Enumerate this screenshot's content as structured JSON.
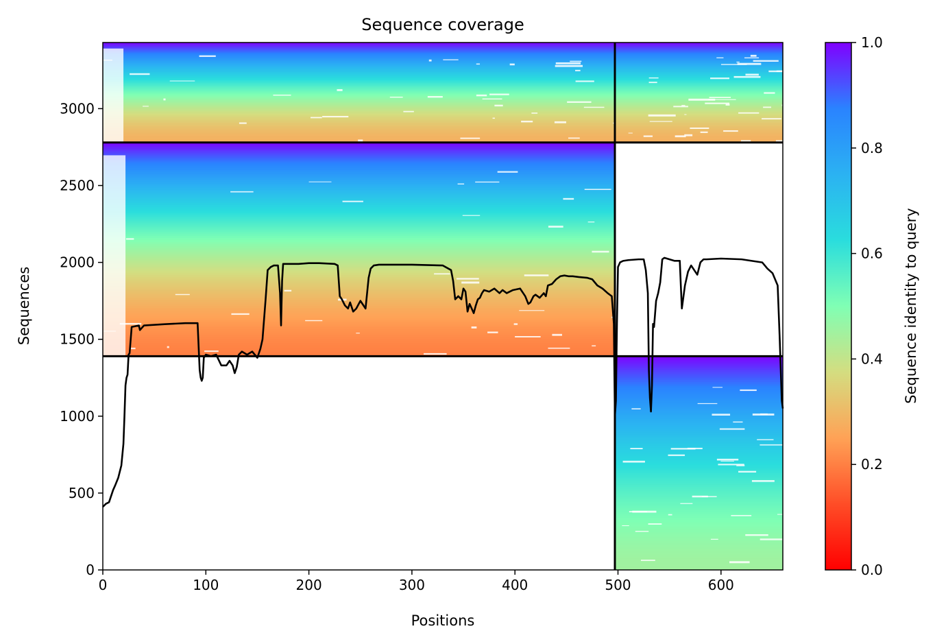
{
  "chart_data": {
    "type": "heatmap",
    "title": "Sequence coverage",
    "xlabel": "Positions",
    "ylabel": "Sequences",
    "xlim": [
      0,
      660
    ],
    "ylim": [
      0,
      3430
    ],
    "x_ticks": [
      0,
      100,
      200,
      300,
      400,
      500,
      600
    ],
    "y_ticks": [
      0,
      500,
      1000,
      1500,
      2000,
      2500,
      3000
    ],
    "colorbar": {
      "label": "Sequence identity to query",
      "colormap": "rainbow_r",
      "range": [
        0.0,
        1.0
      ],
      "ticks": [
        0.0,
        0.2,
        0.4,
        0.6,
        0.8,
        1.0
      ],
      "tick_labels": [
        "0.0",
        "0.2",
        "0.4",
        "0.6",
        "0.8",
        "1.0"
      ]
    },
    "blocks": [
      {
        "x": [
          0,
          497
        ],
        "y": [
          2780,
          3430
        ],
        "identity_bottom": 0.28,
        "identity_top": 1.0,
        "left_gap_end": 20
      },
      {
        "x": [
          497,
          660
        ],
        "y": [
          2780,
          3430
        ],
        "identity_bottom": 0.28,
        "identity_top": 1.0,
        "left_gap_end": 497
      },
      {
        "x": [
          0,
          497
        ],
        "y": [
          1390,
          2780
        ],
        "identity_bottom": 0.2,
        "identity_top": 1.0,
        "left_gap_end": 22
      },
      {
        "x": [
          497,
          660
        ],
        "y": [
          0,
          1390
        ],
        "identity_bottom": 0.45,
        "identity_top": 1.0,
        "left_gap_end": 497
      }
    ],
    "dividers": {
      "vertical_x": [
        497
      ],
      "horizontal_y": [
        2780,
        1390
      ]
    },
    "coverage_line": {
      "name": "coverage",
      "x": [
        0,
        3,
        6,
        10,
        12,
        15,
        18,
        20,
        21,
        22,
        23,
        24,
        25,
        26,
        28,
        35,
        36,
        40,
        60,
        80,
        92,
        93,
        94,
        95,
        96,
        97,
        98,
        100,
        105,
        110,
        115,
        120,
        123,
        126,
        128,
        130,
        132,
        135,
        140,
        145,
        150,
        153,
        155,
        158,
        160,
        163,
        166,
        170,
        172,
        173,
        174,
        175,
        178,
        185,
        190,
        200,
        210,
        225,
        228,
        230,
        232,
        235,
        238,
        240,
        243,
        246,
        250,
        255,
        258,
        260,
        263,
        268,
        280,
        300,
        330,
        338,
        340,
        342,
        345,
        348,
        350,
        352,
        354,
        356,
        358,
        360,
        362,
        364,
        366,
        368,
        370,
        375,
        380,
        385,
        388,
        392,
        398,
        405,
        410,
        413,
        415,
        418,
        420,
        424,
        428,
        430,
        432,
        436,
        440,
        444,
        448,
        452,
        456,
        462,
        470,
        475,
        480,
        485,
        490,
        494,
        496,
        497,
        498,
        499,
        500,
        502,
        505,
        510,
        520,
        525,
        527,
        529,
        530,
        531,
        532,
        533,
        534,
        535,
        537,
        539,
        541,
        543,
        545,
        555,
        560,
        561,
        562,
        563,
        565,
        568,
        571,
        573,
        577,
        580,
        583,
        586,
        600,
        620,
        640,
        645,
        650,
        655,
        657,
        659,
        660
      ],
      "y": [
        410,
        430,
        440,
        520,
        550,
        600,
        680,
        820,
        1000,
        1200,
        1250,
        1270,
        1400,
        1410,
        1580,
        1590,
        1560,
        1590,
        1598,
        1605,
        1605,
        1450,
        1300,
        1250,
        1230,
        1250,
        1380,
        1400,
        1390,
        1400,
        1330,
        1330,
        1360,
        1330,
        1280,
        1320,
        1400,
        1420,
        1400,
        1420,
        1380,
        1440,
        1500,
        1760,
        1950,
        1970,
        1980,
        1980,
        1800,
        1590,
        1880,
        1990,
        1990,
        1990,
        1990,
        1995,
        1995,
        1990,
        1980,
        1780,
        1760,
        1720,
        1700,
        1740,
        1680,
        1700,
        1750,
        1700,
        1900,
        1960,
        1980,
        1985,
        1985,
        1985,
        1980,
        1950,
        1880,
        1760,
        1780,
        1760,
        1830,
        1810,
        1680,
        1730,
        1700,
        1670,
        1720,
        1760,
        1770,
        1800,
        1820,
        1810,
        1830,
        1800,
        1820,
        1800,
        1820,
        1830,
        1780,
        1730,
        1740,
        1780,
        1790,
        1770,
        1800,
        1780,
        1850,
        1860,
        1890,
        1910,
        1915,
        1910,
        1910,
        1905,
        1900,
        1890,
        1850,
        1830,
        1800,
        1780,
        1600,
        1000,
        1100,
        1600,
        1970,
        2000,
        2010,
        2015,
        2020,
        2020,
        1950,
        1800,
        1300,
        1120,
        1030,
        1200,
        1600,
        1580,
        1750,
        1800,
        1870,
        2020,
        2030,
        2010,
        2010,
        1850,
        1700,
        1750,
        1850,
        1940,
        1980,
        1960,
        1920,
        2000,
        2020,
        2020,
        2025,
        2020,
        2000,
        1960,
        1930,
        1850,
        1500,
        1100,
        1050
      ]
    }
  }
}
